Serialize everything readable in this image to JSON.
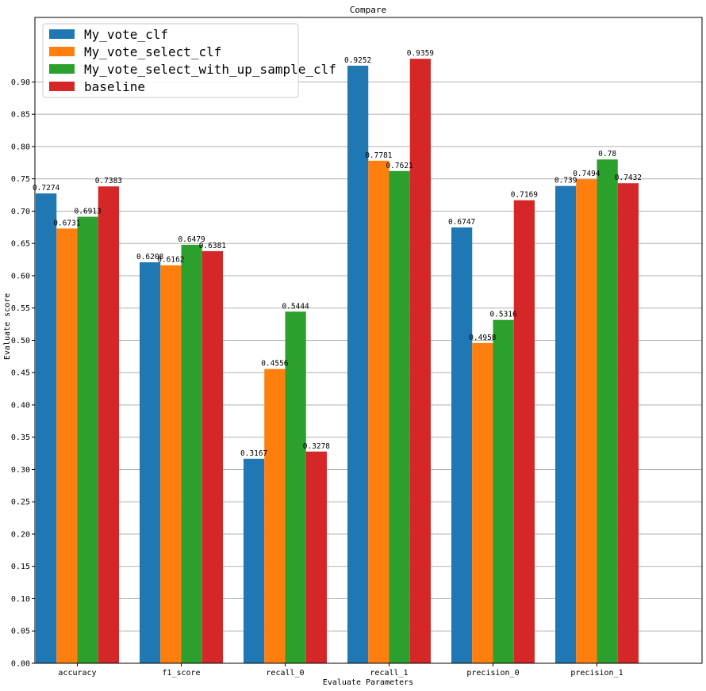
{
  "chart_data": {
    "type": "bar",
    "title": "Compare",
    "xlabel": "Evaluate Parameters",
    "ylabel": "Evaluate score",
    "categories": [
      "accuracy",
      "f1_score",
      "recall_0",
      "recall_1",
      "precision_0",
      "precision_1"
    ],
    "series": [
      {
        "name": "My_vote_clf",
        "color": "#1f77b4",
        "values": [
          0.7274,
          0.6208,
          0.3167,
          0.9252,
          0.6747,
          0.739
        ]
      },
      {
        "name": "My_vote_select_clf",
        "color": "#ff7f0e",
        "values": [
          0.6731,
          0.6162,
          0.4556,
          0.7781,
          0.4958,
          0.7494
        ]
      },
      {
        "name": "My_vote_select_with_up_sample_clf",
        "color": "#2ca02c",
        "values": [
          0.6913,
          0.6479,
          0.5444,
          0.7621,
          0.5316,
          0.78
        ]
      },
      {
        "name": "baseline",
        "color": "#d62728",
        "values": [
          0.7383,
          0.6381,
          0.3278,
          0.9359,
          0.7169,
          0.7432
        ]
      }
    ],
    "data_labels": [
      [
        "0.7274",
        "0.6208",
        "0.3167",
        "0.9252",
        "0.6747",
        "0.739"
      ],
      [
        "0.6731",
        "0.6162",
        "0.4556",
        "0.7781",
        "0.4958",
        "0.7494"
      ],
      [
        "0.6913",
        "0.6479",
        "0.5444",
        "0.7621",
        "0.5316",
        "0.78"
      ],
      [
        "0.7383",
        "0.6381",
        "0.3278",
        "0.9359",
        "0.7169",
        "0.7432"
      ]
    ],
    "yticks": [
      "0.00",
      "0.05",
      "0.10",
      "0.15",
      "0.20",
      "0.25",
      "0.30",
      "0.35",
      "0.40",
      "0.45",
      "0.50",
      "0.55",
      "0.60",
      "0.65",
      "0.70",
      "0.75",
      "0.80",
      "0.85",
      "0.90"
    ],
    "ylim": [
      0,
      0.9999
    ],
    "grid": "y",
    "legend_position": "top-left"
  }
}
